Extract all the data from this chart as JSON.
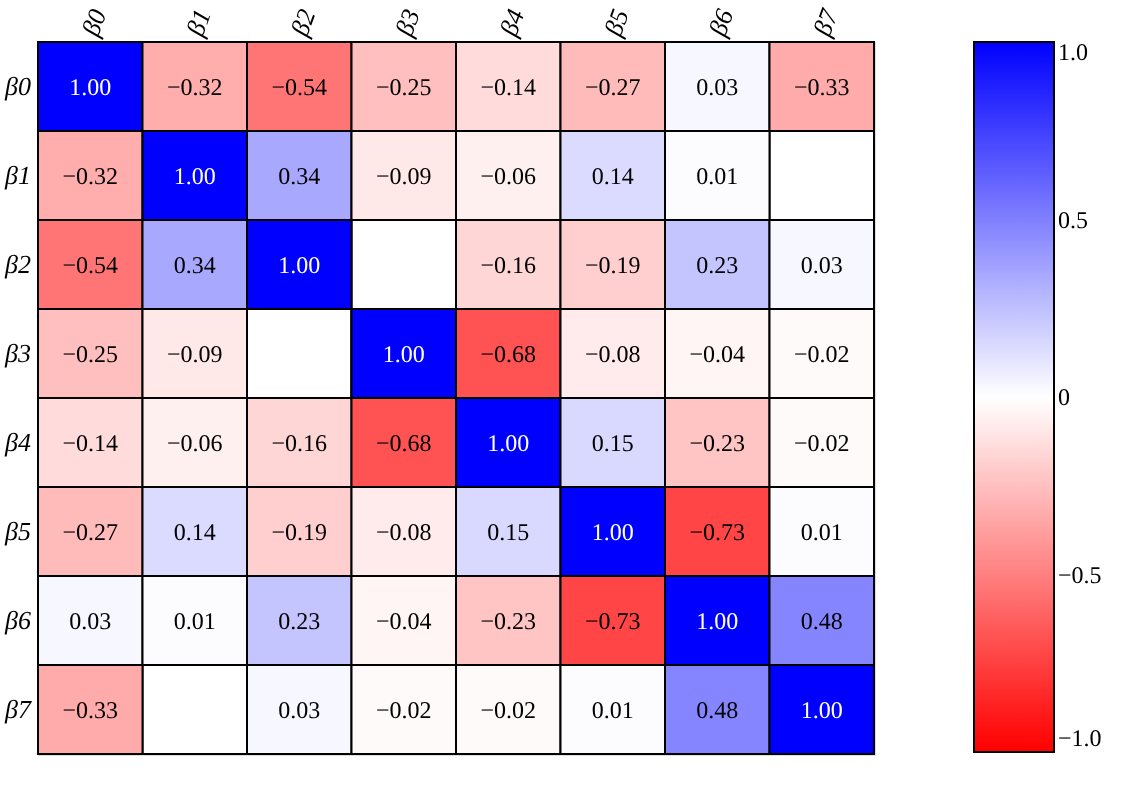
{
  "chart_data": {
    "type": "heatmap",
    "categories": [
      "β0",
      "β1",
      "β2",
      "β3",
      "β4",
      "β5",
      "β6",
      "β7"
    ],
    "y_categories": [
      "β0",
      "β1",
      "β2",
      "β3",
      "β4",
      "β5",
      "β6",
      "β7"
    ],
    "cells": [
      [
        1.0,
        -0.32,
        -0.54,
        -0.25,
        -0.14,
        -0.27,
        0.03,
        -0.33
      ],
      [
        -0.32,
        1.0,
        0.34,
        -0.09,
        -0.06,
        0.14,
        0.01,
        null
      ],
      [
        -0.54,
        0.34,
        1.0,
        null,
        -0.16,
        -0.19,
        0.23,
        0.03
      ],
      [
        -0.25,
        -0.09,
        null,
        1.0,
        -0.68,
        -0.08,
        -0.04,
        -0.02
      ],
      [
        -0.14,
        -0.06,
        -0.16,
        -0.68,
        1.0,
        0.15,
        -0.23,
        -0.02
      ],
      [
        -0.27,
        0.14,
        -0.19,
        -0.08,
        0.15,
        1.0,
        -0.73,
        0.01
      ],
      [
        0.03,
        0.01,
        0.23,
        -0.04,
        -0.23,
        -0.73,
        1.0,
        0.48
      ],
      [
        -0.33,
        null,
        0.03,
        -0.02,
        -0.02,
        0.01,
        0.48,
        1.0
      ]
    ],
    "cell_labels": [
      [
        "1.00",
        "−0.32",
        "−0.54",
        "−0.25",
        "−0.14",
        "−0.27",
        "0.03",
        "−0.33"
      ],
      [
        "−0.32",
        "1.00",
        "0.34",
        "−0.09",
        "−0.06",
        "0.14",
        "0.01",
        null
      ],
      [
        "−0.54",
        "0.34",
        "1.00",
        null,
        "−0.16",
        "−0.19",
        "0.23",
        "0.03"
      ],
      [
        "−0.25",
        "−0.09",
        null,
        "1.00",
        "−0.68",
        "−0.08",
        "−0.04",
        "−0.02"
      ],
      [
        "−0.14",
        "−0.06",
        "−0.16",
        "−0.68",
        "1.00",
        "0.15",
        "−0.23",
        "−0.02"
      ],
      [
        "−0.27",
        "0.14",
        "−0.19",
        "−0.08",
        "0.15",
        "1.00",
        "−0.73",
        "0.01"
      ],
      [
        "0.03",
        "0.01",
        "0.23",
        "−0.04",
        "−0.23",
        "−0.73",
        "1.00",
        "0.48"
      ],
      [
        "−0.33",
        null,
        "0.03",
        "−0.02",
        "−0.02",
        "0.01",
        "0.48",
        "1.00"
      ]
    ],
    "colors": [
      "#ff0000",
      "#ffffff",
      "#0000ff"
    ],
    "clim": [
      -1.0,
      1.0
    ],
    "cticks": [
      {
        "value": -1.0,
        "label": "−1.0"
      },
      {
        "value": -0.5,
        "label": "−0.5"
      },
      {
        "value": 0,
        "label": "0"
      },
      {
        "value": 0.5,
        "label": "0.5"
      },
      {
        "value": 1.0,
        "label": "1.0"
      }
    ]
  }
}
